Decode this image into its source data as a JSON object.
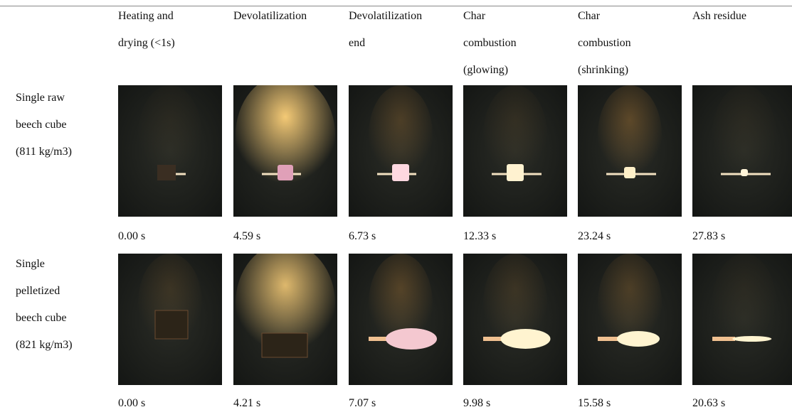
{
  "header": {
    "columns": [
      [
        "Heating and",
        "drying (<1s)"
      ],
      [
        "Devolatilization"
      ],
      [
        "Devolatilization",
        "end"
      ],
      [
        "Char",
        "combustion",
        "(glowing)"
      ],
      [
        "Char",
        "combustion",
        "(shrinking)"
      ],
      [
        "Ash residue"
      ]
    ]
  },
  "rows": [
    {
      "label": [
        "Single raw",
        "beech cube",
        "(811 kg/m3)"
      ],
      "times": [
        "0.00 s",
        "4.59 s",
        "6.73 s",
        "12.33 s",
        "23.24 s",
        "27.83 s"
      ]
    },
    {
      "label": [
        "Single",
        "pelletized",
        "beech cube",
        "(821 kg/m3)"
      ],
      "times": [
        "0.00 s",
        "4.21 s",
        "7.07 s",
        "9.98 s",
        "15.58 s",
        "20.63 s"
      ]
    }
  ]
}
